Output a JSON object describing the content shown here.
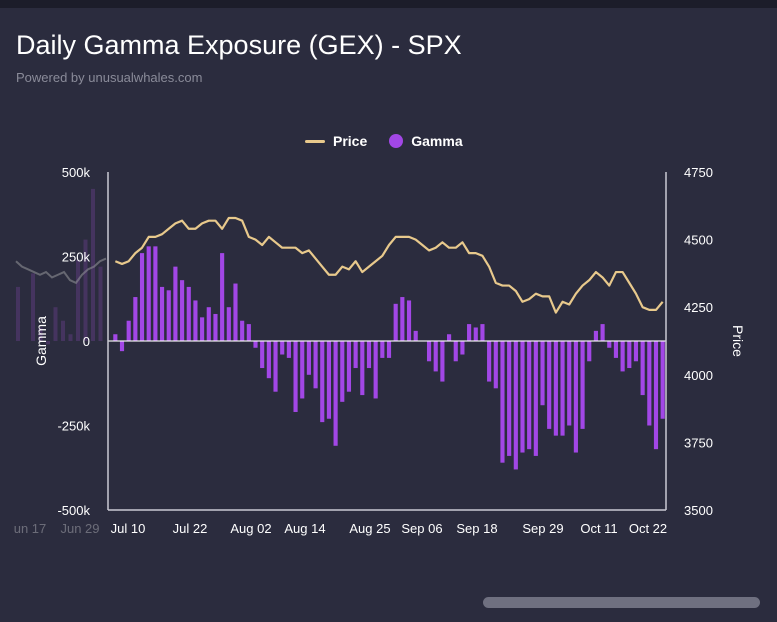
{
  "header": {
    "title": "Daily Gamma Exposure (GEX) - SPX",
    "subtitle": "Powered by unusualwhales.com"
  },
  "legend": {
    "price_label": "Price",
    "gamma_label": "Gamma"
  },
  "colors": {
    "background": "#2b2c3e",
    "price": "#e8c98c",
    "gamma": "#a247e6",
    "faded_price": "#8d8f95",
    "faded_gamma": "#5b3c7a"
  },
  "chart_data": {
    "type": "bar",
    "title": "Daily Gamma Exposure (GEX) - SPX",
    "left_axis": {
      "label": "Gamma",
      "range": [
        -500000,
        500000
      ],
      "ticks": [
        "500k",
        "250k",
        "0",
        "-250k",
        "-500k"
      ]
    },
    "right_axis": {
      "label": "Price",
      "range": [
        3500,
        4750
      ],
      "ticks": [
        "4750",
        "4500",
        "4250",
        "4000",
        "3750",
        "3500"
      ]
    },
    "x_tick_labels": [
      "Jul 10",
      "Jul 22",
      "Aug 02",
      "Aug 14",
      "Aug 25",
      "Sep 06",
      "Sep 18",
      "Sep 29",
      "Oct 11",
      "Oct 22"
    ],
    "faded_x_tick_labels": [
      "un 17",
      "Jun 29"
    ],
    "legend_position": "top",
    "grid": false,
    "series": [
      {
        "name": "Gamma",
        "kind": "bar",
        "values": [
          20000,
          -30000,
          60000,
          130000,
          260000,
          280000,
          280000,
          160000,
          150000,
          220000,
          180000,
          160000,
          120000,
          70000,
          100000,
          80000,
          260000,
          100000,
          170000,
          60000,
          50000,
          -20000,
          -80000,
          -110000,
          -150000,
          -40000,
          -50000,
          -210000,
          -170000,
          -100000,
          -140000,
          -240000,
          -230000,
          -310000,
          -180000,
          -150000,
          -80000,
          -160000,
          -80000,
          -170000,
          -50000,
          -50000,
          110000,
          130000,
          120000,
          30000,
          0,
          -60000,
          -90000,
          -120000,
          20000,
          -60000,
          -40000,
          50000,
          40000,
          50000,
          -120000,
          -140000,
          -360000,
          -340000,
          -380000,
          -330000,
          -320000,
          -340000,
          -190000,
          -260000,
          -280000,
          -280000,
          -250000,
          -330000,
          -260000,
          -60000,
          30000,
          50000,
          -20000,
          -50000,
          -90000,
          -80000,
          -60000,
          -160000,
          -250000,
          -320000,
          -230000
        ],
        "x_index_start": 0
      },
      {
        "name": "Price",
        "kind": "line",
        "values": [
          4420,
          4410,
          4420,
          4450,
          4470,
          4510,
          4510,
          4520,
          4540,
          4560,
          4570,
          4540,
          4540,
          4560,
          4570,
          4570,
          4540,
          4580,
          4580,
          4570,
          4510,
          4500,
          4480,
          4510,
          4490,
          4470,
          4470,
          4470,
          4450,
          4460,
          4430,
          4400,
          4370,
          4370,
          4400,
          4390,
          4420,
          4380,
          4400,
          4420,
          4440,
          4480,
          4510,
          4510,
          4510,
          4500,
          4480,
          4460,
          4470,
          4490,
          4470,
          4470,
          4490,
          4450,
          4450,
          4440,
          4400,
          4340,
          4330,
          4330,
          4310,
          4270,
          4280,
          4300,
          4290,
          4290,
          4230,
          4270,
          4260,
          4300,
          4330,
          4350,
          4380,
          4360,
          4330,
          4380,
          4380,
          4340,
          4300,
          4250,
          4240,
          4240,
          4270
        ]
      }
    ]
  }
}
